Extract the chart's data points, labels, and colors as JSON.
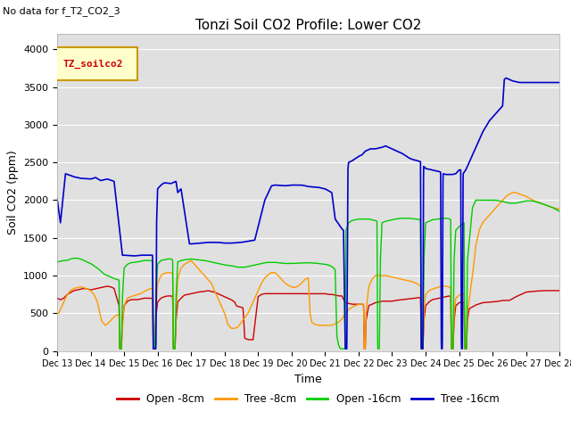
{
  "title": "Tonzi Soil CO2 Profile: Lower CO2",
  "subtitle": "No data for f_T2_CO2_3",
  "ylabel": "Soil CO2 (ppm)",
  "xlabel": "Time",
  "legend_label": "TZ_soilco2",
  "ylim": [
    0,
    4200
  ],
  "yticks": [
    0,
    500,
    1000,
    1500,
    2000,
    2500,
    3000,
    3500,
    4000
  ],
  "xtick_labels": [
    "Dec 13",
    "Dec 14",
    "Dec 15",
    "Dec 16",
    "Dec 17",
    "Dec 18",
    "Dec 19",
    "Dec 20",
    "Dec 21",
    "Dec 22",
    "Dec 23",
    "Dec 24",
    "Dec 25",
    "Dec 26",
    "Dec 27",
    "Dec 28"
  ],
  "colors": {
    "open_8cm": "#cc0000",
    "tree_8cm": "#ff9900",
    "open_16cm": "#00cc00",
    "tree_16cm": "#0000cc"
  },
  "bg_color": "#e0e0e0",
  "fig_bg": "#ffffff",
  "grid_color": "#ffffff",
  "legend_box_color": "#ffffcc",
  "legend_box_edge": "#cc9900",
  "legend_text_color": "#cc0000"
}
